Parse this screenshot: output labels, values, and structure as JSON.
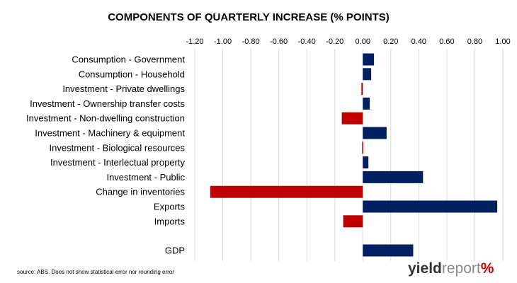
{
  "chart_data": {
    "type": "bar",
    "orientation": "horizontal",
    "title": "COMPONENTS OF QUARTERLY INCREASE (% POINTS)",
    "xlim": [
      -1.2,
      1.0
    ],
    "ticks": [
      "-1.20",
      "-1.00",
      "-0.80",
      "-0.60",
      "-0.40",
      "-0.20",
      "0.00",
      "0.20",
      "0.40",
      "0.60",
      "0.80",
      "1.00"
    ],
    "tick_values": [
      -1.2,
      -1.0,
      -0.8,
      -0.6,
      -0.4,
      -0.2,
      0.0,
      0.2,
      0.4,
      0.6,
      0.8,
      1.0
    ],
    "grid": "vertical",
    "axis_position": "top",
    "categories": [
      "Consumption - Government",
      "Consumption - Household",
      "Investment - Private dwellings",
      "Investment - Ownership transfer costs",
      "Investment - Non-dwelling construction",
      "Investment - Machinery & equipment",
      "Investment - Biological resources",
      "Investment - Interlectual property",
      "Investment - Public",
      "Change in inventories",
      "Exports",
      "Imports",
      "GDP"
    ],
    "values": [
      0.08,
      0.06,
      -0.01,
      0.05,
      -0.15,
      0.17,
      -0.005,
      0.04,
      0.43,
      -1.09,
      0.96,
      -0.14,
      0.36
    ],
    "positive_color": "#002060",
    "negative_color": "#c00000"
  },
  "footer": {
    "source": "source: ABS. Does not show statistical error nor rounding error"
  },
  "brand": {
    "part1": "yield",
    "part2": "report",
    "part3": "%"
  }
}
